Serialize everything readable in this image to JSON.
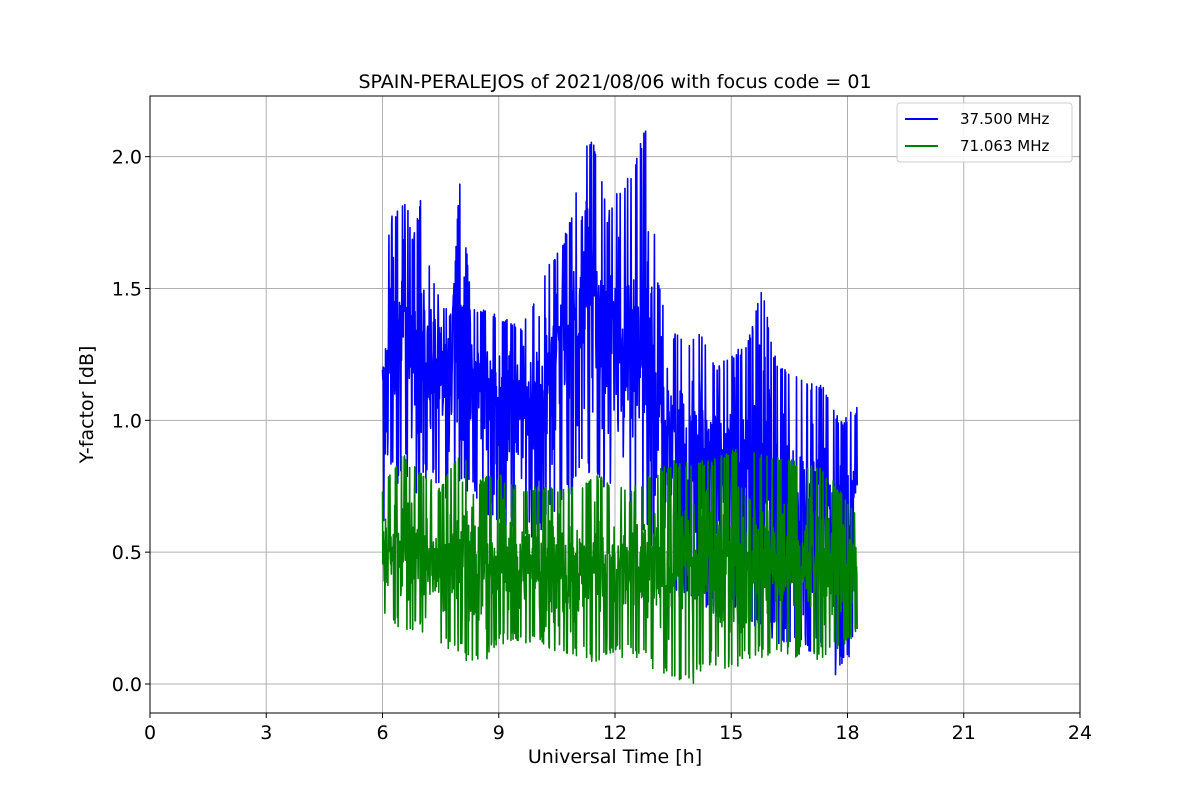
{
  "chart_data": {
    "type": "line",
    "title": "SPAIN-PERALEJOS of 2021/08/06 with focus code = 01",
    "xlabel": "Universal Time [h]",
    "ylabel": "Y-factor [dB]",
    "xlim": [
      0,
      24
    ],
    "ylim": [
      -0.11,
      2.23
    ],
    "xticks": [
      0,
      3,
      6,
      9,
      12,
      15,
      18,
      21,
      24
    ],
    "xtick_labels": [
      "0",
      "3",
      "6",
      "9",
      "12",
      "15",
      "18",
      "21",
      "24"
    ],
    "yticks": [
      0.0,
      0.5,
      1.0,
      1.5,
      2.0
    ],
    "ytick_labels": [
      "0.0",
      "0.5",
      "1.0",
      "1.5",
      "2.0"
    ],
    "grid": true,
    "legend": "top-right",
    "series": [
      {
        "name": "37.500 MHz",
        "color": "#0000ff",
        "envelope": {
          "x": [
            6.0,
            6.2,
            6.4,
            6.6,
            6.8,
            7.0,
            7.2,
            7.5,
            7.8,
            8.0,
            8.3,
            8.6,
            9.0,
            9.3,
            9.6,
            10.0,
            10.3,
            10.6,
            10.9,
            11.2,
            11.5,
            11.8,
            12.1,
            12.4,
            12.8,
            13.1,
            13.4,
            13.8,
            14.2,
            14.6,
            15.0,
            15.4,
            15.8,
            16.2,
            16.6,
            17.0,
            17.4,
            17.8,
            18.25
          ],
          "upper": [
            1.45,
            1.78,
            1.8,
            1.85,
            1.7,
            1.85,
            1.6,
            1.45,
            1.4,
            1.95,
            1.42,
            1.42,
            1.4,
            1.38,
            1.35,
            1.5,
            1.6,
            1.65,
            1.8,
            2.07,
            2.05,
            1.78,
            1.9,
            1.95,
            2.13,
            1.55,
            1.35,
            1.3,
            1.35,
            1.2,
            1.25,
            1.3,
            1.5,
            1.2,
            1.2,
            1.15,
            1.13,
            1.0,
            1.05
          ],
          "center": [
            1.1,
            1.25,
            1.3,
            1.35,
            1.25,
            1.28,
            1.22,
            1.2,
            1.15,
            1.3,
            1.2,
            1.15,
            1.05,
            1.1,
            1.05,
            1.1,
            1.2,
            1.3,
            1.35,
            1.5,
            1.45,
            1.3,
            1.25,
            1.25,
            1.3,
            1.1,
            0.95,
            0.9,
            0.9,
            0.85,
            0.85,
            0.85,
            0.8,
            0.75,
            0.7,
            0.7,
            0.7,
            0.65,
            0.7
          ],
          "lower": [
            0.5,
            0.8,
            0.75,
            0.8,
            0.7,
            0.75,
            0.8,
            0.7,
            0.7,
            0.75,
            0.7,
            0.65,
            0.6,
            0.6,
            0.55,
            0.55,
            0.6,
            0.65,
            0.7,
            0.8,
            0.75,
            0.7,
            0.6,
            0.55,
            0.5,
            0.4,
            0.35,
            0.3,
            0.3,
            0.25,
            0.25,
            0.2,
            0.2,
            0.15,
            0.15,
            0.1,
            0.1,
            0.0,
            0.15
          ]
        }
      },
      {
        "name": "71.063 MHz",
        "color": "#008000",
        "envelope": {
          "x": [
            6.0,
            6.5,
            7.0,
            7.5,
            8.0,
            8.5,
            9.0,
            9.5,
            10.0,
            10.5,
            11.0,
            11.5,
            12.0,
            12.5,
            13.0,
            13.5,
            14.0,
            14.5,
            15.0,
            15.5,
            16.0,
            16.5,
            17.0,
            17.5,
            18.0,
            18.25
          ],
          "upper": [
            0.75,
            0.88,
            0.8,
            0.75,
            0.88,
            0.78,
            0.8,
            0.75,
            0.75,
            0.75,
            0.75,
            0.8,
            0.75,
            0.75,
            0.8,
            0.85,
            0.85,
            0.85,
            0.9,
            0.9,
            0.88,
            0.85,
            0.85,
            0.8,
            0.7,
            0.65
          ],
          "center": [
            0.5,
            0.5,
            0.48,
            0.45,
            0.5,
            0.45,
            0.45,
            0.45,
            0.45,
            0.45,
            0.45,
            0.45,
            0.45,
            0.45,
            0.45,
            0.45,
            0.45,
            0.45,
            0.45,
            0.45,
            0.45,
            0.45,
            0.45,
            0.45,
            0.45,
            0.45
          ],
          "lower": [
            0.27,
            0.2,
            0.2,
            0.15,
            0.1,
            0.05,
            0.15,
            0.15,
            0.15,
            0.1,
            0.1,
            0.08,
            0.1,
            0.1,
            0.05,
            0.02,
            0.0,
            0.05,
            0.05,
            0.1,
            0.1,
            0.1,
            0.08,
            0.1,
            0.15,
            0.2
          ]
        }
      }
    ]
  }
}
